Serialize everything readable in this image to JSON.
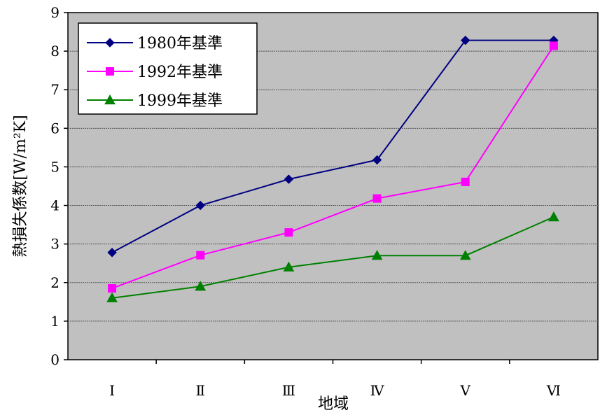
{
  "chart_data": {
    "type": "line",
    "title": "",
    "xlabel": "地域",
    "ylabel": "熱損失係数[W/m²K]",
    "categories": [
      "Ⅰ",
      "Ⅱ",
      "Ⅲ",
      "Ⅳ",
      "Ⅴ",
      "Ⅵ"
    ],
    "ylim": [
      0,
      9
    ],
    "yticks": [
      "0",
      "1",
      "2",
      "3",
      "4",
      "5",
      "6",
      "7",
      "8",
      "9"
    ],
    "grid": true,
    "legend": "top-left",
    "plot_background": "#c0c0c0",
    "series": [
      {
        "name": "1980年基準",
        "color": "#000080",
        "marker": "diamond",
        "values": [
          2.78,
          4.0,
          4.68,
          5.18,
          8.28,
          8.28
        ]
      },
      {
        "name": "1992年基準",
        "color": "#ff00ff",
        "marker": "square",
        "values": [
          1.85,
          2.71,
          3.3,
          4.18,
          4.61,
          8.14
        ]
      },
      {
        "name": "1999年基準",
        "color": "#008000",
        "marker": "triangle",
        "values": [
          1.6,
          1.9,
          2.4,
          2.7,
          2.7,
          3.7
        ]
      }
    ]
  }
}
